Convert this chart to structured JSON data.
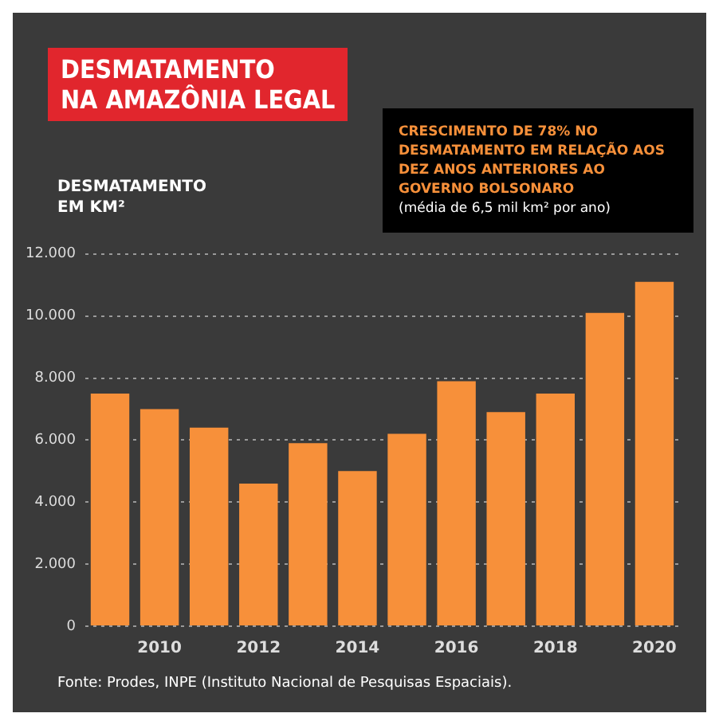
{
  "chart_data": {
    "type": "bar",
    "title": "DESMATAMENTO\nNA AMAZÔNIA LEGAL",
    "ylabel": "DESMATAMENTO EM KM²",
    "categories": [
      null,
      "2010",
      null,
      "2012",
      null,
      "2014",
      null,
      "2016",
      null,
      "2018",
      null,
      "2020"
    ],
    "values": [
      7500,
      7000,
      6400,
      4600,
      5900,
      5000,
      6200,
      7900,
      6900,
      7500,
      10100,
      11100
    ],
    "color": "#f7903a",
    "ylim": [
      0,
      12000
    ],
    "yticks": [
      {
        "value": 0,
        "label": "0"
      },
      {
        "value": 2000,
        "label": "2.000"
      },
      {
        "value": 4000,
        "label": "4.000"
      },
      {
        "value": 6000,
        "label": "6.000"
      },
      {
        "value": 8000,
        "label": "8.000"
      },
      {
        "value": 10000,
        "label": "10.000"
      },
      {
        "value": 12000,
        "label": "12.000"
      }
    ],
    "grid": "y",
    "annotations": [
      "CRESCIMENTO DE 78% NO DESMATAMENTO EM RELAÇÃO AOS DEZ ANOS ANTERIORES AO GOVERNO BOLSONARO",
      "(média de 6,5 mil km² por ano)",
      "Fonte: Prodes, INPE (Instituto Nacional de Pesquisas Espaciais)."
    ]
  }
}
